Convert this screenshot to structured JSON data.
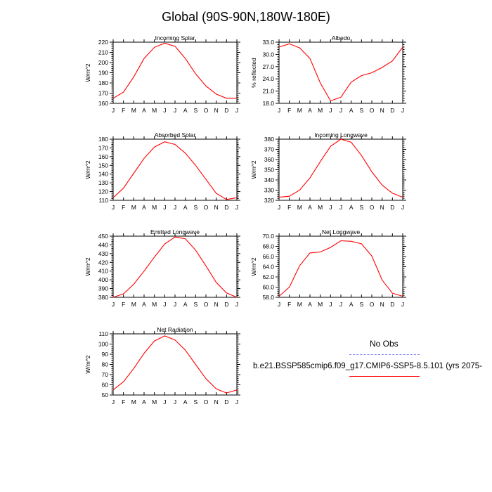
{
  "figure": {
    "title": "Global (90S-90N,180W-180E)"
  },
  "legend": {
    "obs_label": "No Obs",
    "obs_color": "#7f7fff",
    "model_label": "b.e21.BSSP585cmip6.f09_g17.CMIP6-SSP5-8.5.101 (yrs 2075-",
    "model_color": "#ff0000"
  },
  "chart_data": [
    {
      "type": "line",
      "title": "Incoming Solar",
      "ylabel": "W/m^2",
      "x": [
        "J",
        "F",
        "M",
        "A",
        "M",
        "J",
        "J",
        "A",
        "S",
        "O",
        "N",
        "D",
        "J"
      ],
      "ylim": [
        160,
        220
      ],
      "yticks": [
        160,
        170,
        180,
        190,
        200,
        210,
        220
      ],
      "ytick_labels": [
        "160",
        "170",
        "180",
        "190",
        "200",
        "210",
        "220"
      ],
      "series": [
        {
          "values": [
            165,
            171,
            186,
            204,
            215,
            219,
            216,
            204,
            189,
            177,
            169,
            165,
            165
          ]
        }
      ]
    },
    {
      "type": "line",
      "title": "Albedo",
      "ylabel": "% reflected",
      "x": [
        "J",
        "F",
        "M",
        "A",
        "M",
        "J",
        "J",
        "A",
        "S",
        "O",
        "N",
        "D",
        "J"
      ],
      "ylim": [
        18,
        33
      ],
      "yticks": [
        18,
        21,
        24,
        27,
        30,
        33
      ],
      "ytick_labels": [
        "18.0",
        "21.0",
        "24.0",
        "27.0",
        "30.0",
        "33.0"
      ],
      "series": [
        {
          "values": [
            31.8,
            32.6,
            31.6,
            29.0,
            23.0,
            18.6,
            19.5,
            23.2,
            24.8,
            25.5,
            26.8,
            28.4,
            31.8
          ]
        }
      ]
    },
    {
      "type": "line",
      "title": "Absorbed Solar",
      "ylabel": "W/m^2",
      "x": [
        "J",
        "F",
        "M",
        "A",
        "M",
        "J",
        "J",
        "A",
        "S",
        "O",
        "N",
        "D",
        "J"
      ],
      "ylim": [
        110,
        180
      ],
      "yticks": [
        110,
        120,
        130,
        140,
        150,
        160,
        170,
        180
      ],
      "ytick_labels": [
        "110",
        "120",
        "130",
        "140",
        "150",
        "160",
        "170",
        "180"
      ],
      "series": [
        {
          "values": [
            113,
            124,
            141,
            158,
            171,
            177,
            174,
            164,
            150,
            134,
            118,
            111,
            113
          ]
        }
      ]
    },
    {
      "type": "line",
      "title": "Incoming Longwave",
      "ylabel": "W/m^2",
      "x": [
        "J",
        "F",
        "M",
        "A",
        "M",
        "J",
        "J",
        "A",
        "S",
        "O",
        "N",
        "D",
        "J"
      ],
      "ylim": [
        320,
        380
      ],
      "yticks": [
        320,
        330,
        340,
        350,
        360,
        370,
        380
      ],
      "ytick_labels": [
        "320",
        "330",
        "340",
        "350",
        "360",
        "370",
        "380"
      ],
      "series": [
        {
          "values": [
            323,
            324,
            330,
            342,
            358,
            373,
            380,
            377,
            364,
            348,
            335,
            327,
            323
          ]
        }
      ]
    },
    {
      "type": "line",
      "title": "Emitted Longwave",
      "ylabel": "W/m^2",
      "x": [
        "J",
        "F",
        "M",
        "A",
        "M",
        "J",
        "J",
        "A",
        "S",
        "O",
        "N",
        "D",
        "J"
      ],
      "ylim": [
        380,
        450
      ],
      "yticks": [
        380,
        390,
        400,
        410,
        420,
        430,
        440,
        450
      ],
      "ytick_labels": [
        "380",
        "390",
        "400",
        "410",
        "420",
        "430",
        "440",
        "450"
      ],
      "series": [
        {
          "values": [
            380,
            384,
            395,
            410,
            426,
            441,
            449,
            447,
            434,
            416,
            397,
            385,
            380
          ]
        }
      ]
    },
    {
      "type": "line",
      "title": "Net Longwave",
      "ylabel": "W/m^2",
      "x": [
        "J",
        "F",
        "M",
        "A",
        "M",
        "J",
        "J",
        "A",
        "S",
        "O",
        "N",
        "D",
        "J"
      ],
      "ylim": [
        58,
        70
      ],
      "yticks": [
        58,
        60,
        62,
        64,
        66,
        68,
        70
      ],
      "ytick_labels": [
        "58.0",
        "60.0",
        "62.0",
        "64.0",
        "66.0",
        "68.0",
        "70.0"
      ],
      "series": [
        {
          "values": [
            58.2,
            60.0,
            64.2,
            66.7,
            66.9,
            67.8,
            69.1,
            69.0,
            68.5,
            66.1,
            61.4,
            58.8,
            58.2
          ]
        }
      ]
    },
    {
      "type": "line",
      "title": "Net Radiation",
      "ylabel": "W/m^2",
      "x": [
        "J",
        "F",
        "M",
        "A",
        "M",
        "J",
        "J",
        "A",
        "S",
        "O",
        "N",
        "D",
        "J"
      ],
      "ylim": [
        50,
        110
      ],
      "yticks": [
        50,
        60,
        70,
        80,
        90,
        100,
        110
      ],
      "ytick_labels": [
        "50",
        "60",
        "70",
        "80",
        "90",
        "100",
        "110"
      ],
      "series": [
        {
          "values": [
            55,
            63,
            76,
            91,
            103,
            108,
            104,
            94,
            80,
            66,
            56,
            52,
            55
          ]
        }
      ]
    }
  ]
}
